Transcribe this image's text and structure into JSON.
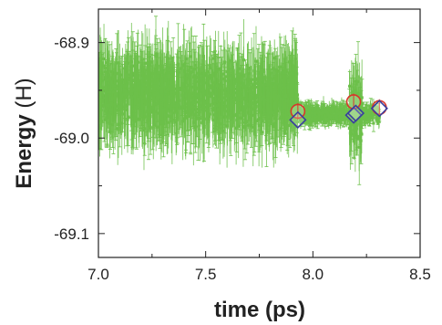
{
  "chart_data": {
    "type": "scatter",
    "x_axis": {
      "label": "time (ps)",
      "range": [
        7.0,
        8.5
      ],
      "ticks": [
        "7.0",
        "7.5",
        "8.0",
        "8.5"
      ]
    },
    "y_axis": {
      "label_bold": "Energy",
      "label_unit": "(H)",
      "range": [
        -69.125,
        -68.865
      ],
      "ticks": [
        "-68.9",
        "-69.0",
        "-69.1"
      ]
    },
    "grid": false,
    "colors": {
      "noisy_series": "#6cc04a",
      "circle_series": "#d9362b",
      "diamond_series": "#3a3f9e"
    },
    "noisy_envelope": {
      "description_values": [
        {
          "x_range": [
            7.0,
            7.93
          ],
          "mean": -68.955,
          "y_min": -69.075,
          "y_max": -68.87
        },
        {
          "x_range": [
            7.93,
            8.17
          ],
          "mean": -68.975,
          "y_min": -69.005,
          "y_max": -68.955
        },
        {
          "x_range": [
            8.17,
            8.23
          ],
          "mean": -68.975,
          "y_min": -69.055,
          "y_max": -68.895
        },
        {
          "x_range": [
            8.23,
            8.31
          ],
          "mean": -68.975,
          "y_min": -68.995,
          "y_max": -68.955
        }
      ]
    },
    "series": [
      {
        "marker": "circle",
        "points": [
          {
            "x": 7.93,
            "y": -68.972
          },
          {
            "x": 8.19,
            "y": -68.962
          },
          {
            "x": 8.31,
            "y": -68.968
          }
        ]
      },
      {
        "marker": "diamond",
        "points": [
          {
            "x": 7.93,
            "y": -68.981
          },
          {
            "x": 8.19,
            "y": -68.976
          },
          {
            "x": 8.2,
            "y": -68.974
          },
          {
            "x": 8.31,
            "y": -68.969
          }
        ]
      }
    ]
  }
}
